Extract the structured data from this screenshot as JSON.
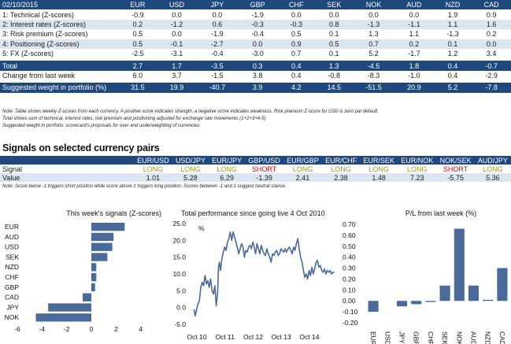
{
  "scorecard": {
    "date": "02/10/2015",
    "currencies": [
      "EUR",
      "USD",
      "JPY",
      "GBP",
      "CHF",
      "SEK",
      "NOK",
      "AUD",
      "NZD",
      "CAD"
    ],
    "rows": [
      {
        "label": "1: Technical (Z-scores)",
        "values": [
          "-0.9",
          "0.0",
          "0.0",
          "-1.9",
          "0.0",
          "0.0",
          "0.0",
          "0.0",
          "1.9",
          "0.9"
        ],
        "style": "white"
      },
      {
        "label": "2: Interest rates (Z-scores)",
        "values": [
          "0.2",
          "-1.2",
          "0.6",
          "-0.3",
          "-0.3",
          "0.8",
          "-1.3",
          "-1.1",
          "1.1",
          "1.6"
        ],
        "style": "band"
      },
      {
        "label": "3: Risk premium (Z-scores)",
        "values": [
          "0.5",
          "0.0",
          "-1.9",
          "-0.4",
          "0.5",
          "0.1",
          "1.3",
          "1.1",
          "-1.3",
          "0.2"
        ],
        "style": "white"
      },
      {
        "label": "4: Positioning (Z-scores)",
        "values": [
          "0.5",
          "-0.1",
          "-2.7",
          "0.0",
          "0.9",
          "0.5",
          "0.7",
          "0.2",
          "0.1",
          "0.0"
        ],
        "style": "band"
      },
      {
        "label": "5: FX (Z-scores)",
        "values": [
          "-2.5",
          "-3.1",
          "-0.4",
          "-3.0",
          "0.7",
          "0.1",
          "5.2",
          "-1.7",
          "1.2",
          "3.4"
        ],
        "style": "white"
      }
    ],
    "total": {
      "label": "Total",
      "values": [
        "2.7",
        "1.7",
        "-3.5",
        "0.3",
        "0.4",
        "1.3",
        "-4.5",
        "1.8",
        "0.4",
        "-0.7"
      ]
    },
    "change": {
      "label": "Change from last week",
      "values": [
        "6.0",
        "3.7",
        "-1.5",
        "3.8",
        "0.4",
        "-0.8",
        "-8.3",
        "-1.0",
        "0.4",
        "-2.9"
      ]
    },
    "weight": {
      "label": "Suggested weight in portfolio (%)",
      "values": [
        "31.5",
        "19.9",
        "-40.7",
        "3.9",
        "4.2",
        "14.5",
        "-51.5",
        "20.9",
        "5.2",
        "-7.8"
      ]
    },
    "notes": [
      "Note: Table shows weekly Z-scores from each currency. A positive score indicates strength, a negative score indicates weakness. Risk premium Z-score for USD is zero par default.",
      "Total shows sum of technical, interest rates, risk premium and positioning adjusted for exchange rate movements (1+2+3+4-5)",
      "Suggested weight in portfolio: scorecard's proposals for over and underweighting of currencies"
    ]
  },
  "signals": {
    "title": "Signals on selected currency pairs",
    "pairs": [
      "EUR/USD",
      "USD/JPY",
      "EUR/JPY",
      "GBP/USD",
      "EUR/GBP",
      "EUR/CHF",
      "EUR/SEK",
      "EUR/NOK",
      "NOK/SEK",
      "AUD/JPY"
    ],
    "signal_label": "Signal",
    "signal_values": [
      "LONG",
      "LONG",
      "LONG",
      "SHORT",
      "LONG",
      "LONG",
      "LONG",
      "LONG",
      "SHORT",
      "LONG"
    ],
    "value_label": "Value",
    "values": [
      "1.01",
      "5.28",
      "6.29",
      "-1.39",
      "2.41",
      "2.38",
      "1.48",
      "7.23",
      "-5.75",
      "5.36"
    ],
    "note": "Note: Score below -1 triggers short position while score above 1 triggers long position. Scores between -1 and 1 suggest neutral stance.",
    "colors": {
      "long": "#9b9b2b",
      "short": "#d01010"
    }
  },
  "colors": {
    "navy": "#1f497d",
    "band": "#dce6f1",
    "bar": "#4a6a9a"
  },
  "chart_data": [
    {
      "type": "bar",
      "orientation": "horizontal",
      "title": "This week's signals (Z-scores)",
      "categories": [
        "EUR",
        "AUD",
        "USD",
        "SEK",
        "NZD",
        "CHF",
        "GBP",
        "CAD",
        "JPY",
        "NOK"
      ],
      "values": [
        2.7,
        1.8,
        1.7,
        1.3,
        0.4,
        0.4,
        0.3,
        -0.7,
        -3.5,
        -4.5
      ],
      "xlim": [
        -6,
        6
      ],
      "xticks": [
        "-6",
        "-4",
        "-2",
        "0",
        "2",
        "4"
      ],
      "xtick_values": [
        -6,
        -4,
        -2,
        0,
        2,
        4
      ]
    },
    {
      "type": "line",
      "title": "Total performance since going live 4 Oct 2010",
      "ylabel": "%",
      "ylim": [
        -5,
        25
      ],
      "yticks": [
        "25.0",
        "20.0",
        "15.0",
        "10.0",
        "5.0",
        "0.0",
        "-5.0"
      ],
      "ytick_values": [
        25,
        20,
        15,
        10,
        5,
        0,
        -5
      ],
      "xticks": [
        "Oct 10",
        "Oct 11",
        "Oct 12",
        "Oct 13",
        "Oct 14"
      ],
      "xtick_values": [
        2010.75,
        2011.75,
        2012.75,
        2013.75,
        2014.75
      ],
      "xlim": [
        2010.58,
        2015.9
      ],
      "x": [
        2010.76,
        2010.8,
        2010.84,
        2010.9,
        2010.95,
        2011.0,
        2011.05,
        2011.1,
        2011.15,
        2011.2,
        2011.25,
        2011.3,
        2011.35,
        2011.4,
        2011.45,
        2011.5,
        2011.55,
        2011.6,
        2011.63,
        2011.66,
        2011.7,
        2011.75,
        2011.8,
        2011.85,
        2011.9,
        2011.95,
        2012.0,
        2012.05,
        2012.1,
        2012.15,
        2012.2,
        2012.25,
        2012.3,
        2012.35,
        2012.4,
        2012.45,
        2012.5,
        2012.55,
        2012.6,
        2012.65,
        2012.7,
        2012.75,
        2012.8,
        2012.85,
        2012.9,
        2012.95,
        2013.0,
        2013.05,
        2013.1,
        2013.15,
        2013.2,
        2013.25,
        2013.3,
        2013.35,
        2013.4,
        2013.45,
        2013.5,
        2013.55,
        2013.6,
        2013.65,
        2013.7,
        2013.75,
        2013.8,
        2013.85,
        2013.9,
        2013.95,
        2014.0,
        2014.05,
        2014.1,
        2014.15,
        2014.2,
        2014.25,
        2014.3,
        2014.35,
        2014.4,
        2014.45,
        2014.5,
        2014.55,
        2014.6,
        2014.65,
        2014.7,
        2014.75,
        2014.8,
        2014.85,
        2014.9,
        2014.95,
        2015.0,
        2015.05,
        2015.1,
        2015.15,
        2015.2,
        2015.25,
        2015.3,
        2015.35,
        2015.4,
        2015.45,
        2015.5,
        2015.55,
        2015.6,
        2015.65,
        2015.7,
        2015.75
      ],
      "y": [
        -0.5,
        -2.5,
        -1.0,
        1.0,
        2.0,
        6.0,
        7.5,
        6.5,
        9.5,
        7.0,
        8.0,
        6.0,
        8.5,
        5.0,
        4.0,
        6.5,
        0.5,
        4.5,
        12.0,
        13.5,
        11.0,
        14.5,
        16.5,
        18.0,
        17.0,
        19.5,
        20.5,
        22.5,
        20.0,
        22.5,
        21.0,
        19.5,
        18.0,
        16.0,
        17.5,
        19.0,
        18.0,
        15.0,
        17.0,
        16.5,
        18.0,
        18.5,
        17.5,
        19.5,
        18.0,
        16.0,
        19.0,
        17.5,
        16.0,
        18.5,
        17.0,
        16.0,
        15.5,
        17.5,
        16.0,
        15.0,
        13.5,
        16.0,
        15.5,
        16.5,
        17.0,
        15.5,
        16.0,
        17.5,
        17.0,
        16.5,
        17.5,
        16.5,
        17.5,
        18.0,
        17.0,
        16.0,
        18.0,
        17.0,
        19.0,
        20.5,
        17.5,
        15.0,
        13.5,
        11.0,
        9.0,
        10.0,
        8.5,
        11.0,
        9.5,
        12.0,
        10.0,
        11.5,
        13.5,
        14.0,
        12.0,
        12.5,
        11.0,
        10.5,
        11.5,
        10.0,
        11.0,
        10.5,
        11.0,
        10.0,
        10.5,
        10.5
      ]
    },
    {
      "type": "bar",
      "title": "P/L from last week (%)",
      "categories": [
        "EUR",
        "USD",
        "JPY",
        "GBP",
        "CHF",
        "SEK",
        "NOK",
        "AUD",
        "NZD",
        "CAD"
      ],
      "values": [
        -0.1,
        0.0,
        -0.05,
        -0.03,
        -0.01,
        0.14,
        0.66,
        0.14,
        0.01,
        0.3
      ],
      "ylim": [
        -0.2,
        0.7
      ],
      "yticks": [
        "0.70",
        "0.60",
        "0.50",
        "0.40",
        "0.30",
        "0.20",
        "0.10",
        "0.00",
        "-0.10",
        "-0.20"
      ],
      "ytick_values": [
        0.7,
        0.6,
        0.5,
        0.4,
        0.3,
        0.2,
        0.1,
        0.0,
        -0.1,
        -0.2
      ]
    }
  ]
}
